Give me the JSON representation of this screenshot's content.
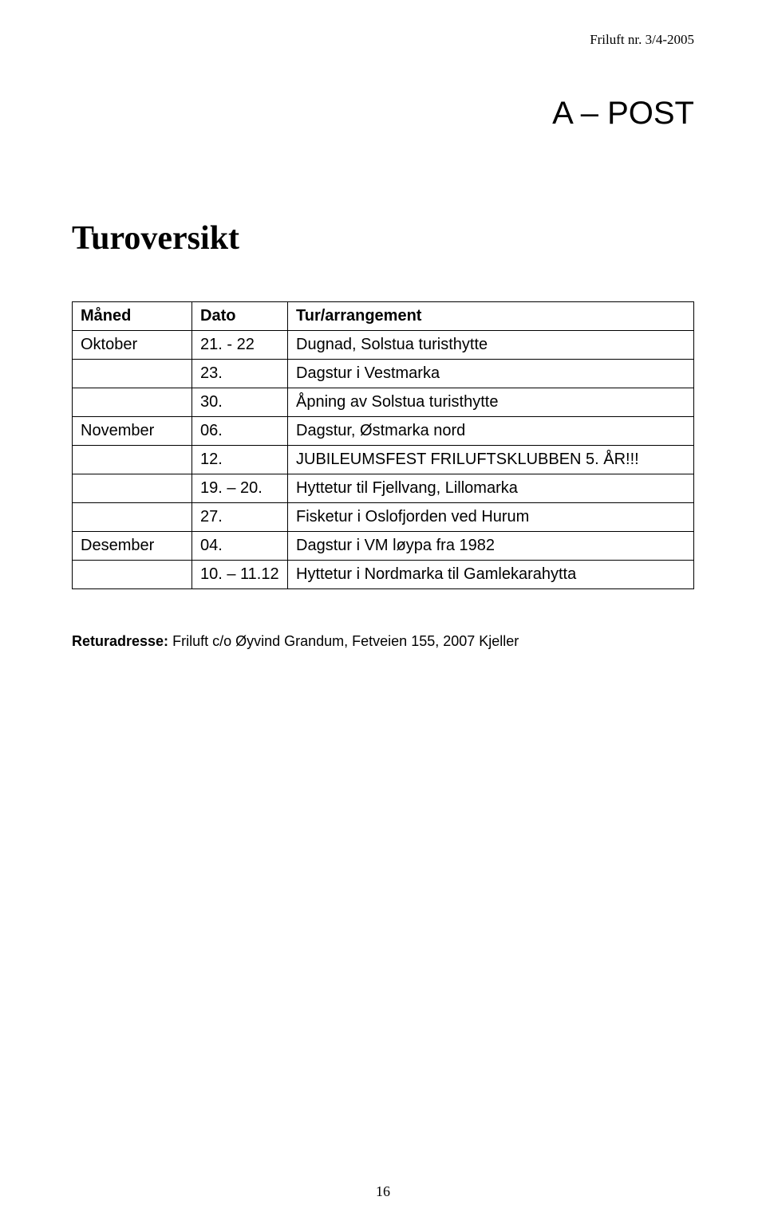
{
  "header": {
    "issue": "Friluft nr. 3/4-2005"
  },
  "postHeading": "A – POST",
  "tourHeading": "Turoversikt",
  "table": {
    "columns": [
      "Måned",
      "Dato",
      "Tur/arrangement"
    ],
    "rows": [
      {
        "month": "Oktober",
        "date": "21. - 22",
        "event": "Dugnad, Solstua turisthytte"
      },
      {
        "month": "",
        "date": "23.",
        "event": "Dagstur i Vestmarka"
      },
      {
        "month": "",
        "date": "30.",
        "event": "Åpning av Solstua turisthytte"
      },
      {
        "month": "November",
        "date": "06.",
        "event": "Dagstur, Østmarka nord"
      },
      {
        "month": "",
        "date": "12.",
        "event": "JUBILEUMSFEST FRILUFTSKLUBBEN 5. ÅR!!!"
      },
      {
        "month": "",
        "date": "19. – 20.",
        "event": "Hyttetur til Fjellvang, Lillomarka"
      },
      {
        "month": "",
        "date": "27.",
        "event": "Fisketur i Oslofjorden ved Hurum"
      },
      {
        "month": "Desember",
        "date": "04.",
        "event": "Dagstur i VM løypa fra 1982"
      },
      {
        "month": "",
        "date": "10. – 11.12",
        "event": "Hyttetur i Nordmarka til Gamlekarahytta"
      }
    ]
  },
  "returnAddress": {
    "label": "Returadresse:",
    "value": "Friluft c/o Øyvind Grandum, Fetveien 155, 2007 Kjeller"
  },
  "pageNumber": "16"
}
